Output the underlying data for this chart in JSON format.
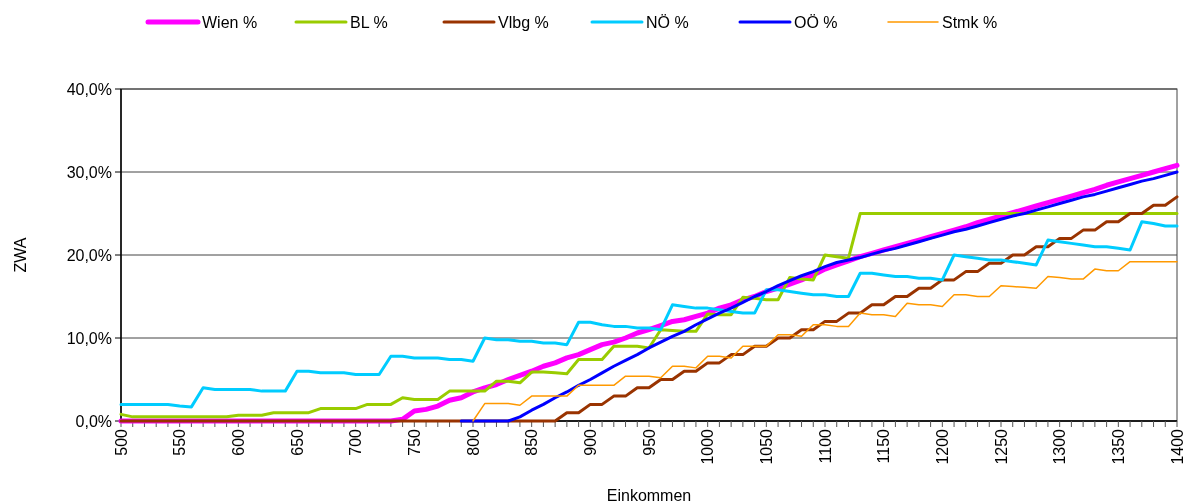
{
  "chart_data": {
    "type": "line",
    "xlabel": "Einkommen",
    "ylabel": "ZWA",
    "legend": "top",
    "grid": "y",
    "marker": "none",
    "line_style": "solid",
    "x": [
      500,
      510,
      520,
      530,
      540,
      550,
      560,
      570,
      580,
      590,
      600,
      610,
      620,
      630,
      640,
      650,
      660,
      670,
      680,
      690,
      700,
      710,
      720,
      730,
      740,
      750,
      760,
      770,
      780,
      790,
      800,
      810,
      820,
      830,
      840,
      850,
      860,
      870,
      880,
      890,
      900,
      910,
      920,
      930,
      940,
      950,
      960,
      970,
      980,
      990,
      1000,
      1010,
      1020,
      1030,
      1040,
      1050,
      1060,
      1070,
      1080,
      1090,
      1100,
      1110,
      1120,
      1130,
      1140,
      1150,
      1160,
      1170,
      1180,
      1190,
      1200,
      1210,
      1220,
      1230,
      1240,
      1250,
      1260,
      1270,
      1280,
      1290,
      1300,
      1310,
      1320,
      1330,
      1340,
      1350,
      1360,
      1370,
      1380,
      1390,
      1400
    ],
    "xlim": [
      500,
      1400
    ],
    "xticks": [
      500,
      {
        "value": 510,
        "label": null
      },
      {
        "value": 520,
        "label": null
      },
      {
        "value": 530,
        "label": null
      },
      {
        "value": 540,
        "label": null
      },
      550,
      {
        "value": 560,
        "label": null
      },
      {
        "value": 570,
        "label": null
      },
      {
        "value": 580,
        "label": null
      },
      {
        "value": 590,
        "label": null
      },
      600,
      {
        "value": 610,
        "label": null
      },
      {
        "value": 620,
        "label": null
      },
      {
        "value": 630,
        "label": null
      },
      {
        "value": 640,
        "label": null
      },
      650,
      {
        "value": 660,
        "label": null
      },
      {
        "value": 670,
        "label": null
      },
      {
        "value": 680,
        "label": null
      },
      {
        "value": 690,
        "label": null
      },
      700,
      {
        "value": 710,
        "label": null
      },
      {
        "value": 720,
        "label": null
      },
      {
        "value": 730,
        "label": null
      },
      {
        "value": 740,
        "label": null
      },
      750,
      {
        "value": 760,
        "label": null
      },
      {
        "value": 770,
        "label": null
      },
      {
        "value": 780,
        "label": null
      },
      {
        "value": 790,
        "label": null
      },
      800,
      {
        "value": 810,
        "label": null
      },
      {
        "value": 820,
        "label": null
      },
      {
        "value": 830,
        "label": null
      },
      {
        "value": 840,
        "label": null
      },
      850,
      {
        "value": 860,
        "label": null
      },
      {
        "value": 870,
        "label": null
      },
      {
        "value": 880,
        "label": null
      },
      {
        "value": 890,
        "label": null
      },
      900,
      {
        "value": 910,
        "label": null
      },
      {
        "value": 920,
        "label": null
      },
      {
        "value": 930,
        "label": null
      },
      {
        "value": 940,
        "label": null
      },
      950,
      {
        "value": 960,
        "label": null
      },
      {
        "value": 970,
        "label": null
      },
      {
        "value": 980,
        "label": null
      },
      {
        "value": 990,
        "label": null
      },
      1000,
      {
        "value": 1010,
        "label": null
      },
      {
        "value": 1020,
        "label": null
      },
      {
        "value": 1030,
        "label": null
      },
      {
        "value": 1040,
        "label": null
      },
      1050,
      {
        "value": 1060,
        "label": null
      },
      {
        "value": 1070,
        "label": null
      },
      {
        "value": 1080,
        "label": null
      },
      {
        "value": 1090,
        "label": null
      },
      1100,
      {
        "value": 1110,
        "label": null
      },
      {
        "value": 1120,
        "label": null
      },
      {
        "value": 1130,
        "label": null
      },
      {
        "value": 1140,
        "label": null
      },
      1150,
      {
        "value": 1160,
        "label": null
      },
      {
        "value": 1170,
        "label": null
      },
      {
        "value": 1180,
        "label": null
      },
      {
        "value": 1190,
        "label": null
      },
      1200,
      {
        "value": 1210,
        "label": null
      },
      {
        "value": 1220,
        "label": null
      },
      {
        "value": 1230,
        "label": null
      },
      {
        "value": 1240,
        "label": null
      },
      1250,
      {
        "value": 1260,
        "label": null
      },
      {
        "value": 1270,
        "label": null
      },
      {
        "value": 1280,
        "label": null
      },
      {
        "value": 1290,
        "label": null
      },
      1300,
      {
        "value": 1310,
        "label": null
      },
      {
        "value": 1320,
        "label": null
      },
      {
        "value": 1330,
        "label": null
      },
      {
        "value": 1340,
        "label": null
      },
      1350,
      {
        "value": 1360,
        "label": null
      },
      {
        "value": 1370,
        "label": null
      },
      {
        "value": 1380,
        "label": null
      },
      {
        "value": 1390,
        "label": null
      },
      1400
    ],
    "ylim": [
      0,
      40
    ],
    "yticks": [
      {
        "value": 0,
        "label": "0,0%"
      },
      {
        "value": 10,
        "label": "10,0%"
      },
      {
        "value": 20,
        "label": "20,0%"
      },
      {
        "value": 30,
        "label": "30,0%"
      },
      {
        "value": 40,
        "label": "40,0%"
      }
    ],
    "series": [
      {
        "name": "Wien %",
        "color": "#ff00ff",
        "values": [
          0,
          0,
          0,
          0,
          0,
          0,
          0,
          0,
          0,
          0,
          0,
          0,
          0,
          0,
          0,
          0,
          0,
          0,
          0,
          0,
          0,
          0,
          0,
          0,
          0.2,
          1.2,
          1.4,
          1.8,
          2.5,
          2.8,
          3.5,
          4.0,
          4.4,
          5.0,
          5.5,
          6.0,
          6.6,
          7.0,
          7.6,
          8.0,
          8.6,
          9.2,
          9.5,
          10.0,
          10.6,
          11.0,
          11.5,
          12.0,
          12.2,
          12.6,
          13.0,
          13.6,
          14.0,
          14.6,
          15.0,
          15.6,
          16.0,
          16.5,
          17.0,
          17.6,
          18.3,
          18.8,
          19.3,
          19.8,
          20.2,
          20.6,
          21.0,
          21.4,
          21.8,
          22.2,
          22.6,
          23.0,
          23.4,
          23.9,
          24.3,
          24.7,
          25.1,
          25.5,
          25.9,
          26.3,
          26.7,
          27.1,
          27.5,
          27.9,
          28.4,
          28.8,
          29.2,
          29.6,
          30.0,
          30.4,
          30.8
        ]
      },
      {
        "name": "BL %",
        "color": "#99cc00",
        "values": [
          0.8,
          0.5,
          0.5,
          0.5,
          0.5,
          0.5,
          0.5,
          0.5,
          0.5,
          0.5,
          0.7,
          0.7,
          0.7,
          1.0,
          1.0,
          1.0,
          1.0,
          1.5,
          1.5,
          1.5,
          1.5,
          2.0,
          2.0,
          2.0,
          2.8,
          2.6,
          2.6,
          2.6,
          3.6,
          3.6,
          3.6,
          3.6,
          4.8,
          4.8,
          4.6,
          5.9,
          5.9,
          5.8,
          5.7,
          7.4,
          7.4,
          7.4,
          9.0,
          9.0,
          9.0,
          8.8,
          11.0,
          10.9,
          10.8,
          10.8,
          12.9,
          12.8,
          12.8,
          14.9,
          14.8,
          14.6,
          14.6,
          17.3,
          17.1,
          17.0,
          20.0,
          19.8,
          19.6,
          25,
          25,
          25,
          25,
          25,
          25,
          25,
          25,
          25,
          25,
          25,
          25,
          25,
          25,
          25,
          25,
          25,
          25,
          25,
          25,
          25,
          25,
          25,
          25,
          25,
          25,
          25,
          25
        ]
      },
      {
        "name": "Vlbg %",
        "color": "#993300",
        "values": [
          0,
          0,
          0,
          0,
          0,
          0,
          0,
          0,
          0,
          0,
          0,
          0,
          0,
          0,
          0,
          0,
          0,
          0,
          0,
          0,
          0,
          0,
          0,
          0,
          0,
          0,
          0,
          0,
          0,
          0,
          0,
          0,
          0,
          0,
          0,
          0,
          0,
          0,
          1,
          1,
          2,
          2,
          3,
          3,
          4,
          4,
          5,
          5,
          6,
          6,
          7,
          7,
          8,
          8,
          9,
          9,
          10,
          10,
          11,
          11,
          12,
          12,
          13,
          13,
          14,
          14,
          15,
          15,
          16,
          16,
          17,
          17,
          18,
          18,
          19,
          19,
          20,
          20,
          21,
          21,
          22,
          22,
          23,
          23,
          24,
          24,
          25,
          25,
          26,
          26,
          27
        ]
      },
      {
        "name": "NÖ %",
        "color": "#00ccff",
        "values": [
          2.0,
          2.0,
          2.0,
          2.0,
          2.0,
          1.8,
          1.7,
          4.0,
          3.8,
          3.8,
          3.8,
          3.8,
          3.6,
          3.6,
          3.6,
          6.0,
          6.0,
          5.8,
          5.8,
          5.8,
          5.6,
          5.6,
          5.6,
          7.8,
          7.8,
          7.6,
          7.6,
          7.6,
          7.4,
          7.4,
          7.2,
          10.0,
          9.8,
          9.8,
          9.6,
          9.6,
          9.4,
          9.4,
          9.2,
          11.9,
          11.9,
          11.6,
          11.4,
          11.4,
          11.2,
          11.2,
          11.0,
          14.0,
          13.8,
          13.6,
          13.6,
          13.4,
          13.2,
          13.0,
          13.0,
          15.8,
          15.8,
          15.6,
          15.4,
          15.2,
          15.2,
          15.0,
          15.0,
          17.8,
          17.8,
          17.6,
          17.4,
          17.4,
          17.2,
          17.2,
          17.0,
          20.0,
          19.8,
          19.6,
          19.4,
          19.4,
          19.2,
          19.0,
          18.8,
          21.8,
          21.6,
          21.4,
          21.2,
          21.0,
          21.0,
          20.8,
          20.6,
          24.0,
          23.8,
          23.5,
          23.5
        ]
      },
      {
        "name": "OÖ %",
        "color": "#0000ff",
        "values": [
          null,
          null,
          null,
          null,
          null,
          null,
          null,
          null,
          null,
          null,
          null,
          null,
          null,
          null,
          null,
          null,
          null,
          null,
          null,
          null,
          null,
          null,
          null,
          null,
          null,
          null,
          null,
          null,
          null,
          0,
          0,
          0,
          0,
          0,
          0.5,
          1.3,
          2.0,
          2.8,
          3.5,
          4.3,
          5.0,
          5.8,
          6.6,
          7.3,
          8.0,
          8.8,
          9.5,
          10.2,
          10.8,
          11.6,
          12.3,
          13.0,
          13.6,
          14.3,
          15.0,
          15.6,
          16.3,
          16.9,
          17.5,
          18.0,
          18.6,
          19.1,
          19.4,
          19.7,
          20.1,
          20.5,
          20.8,
          21.2,
          21.6,
          22.0,
          22.4,
          22.8,
          23.1,
          23.5,
          23.9,
          24.3,
          24.7,
          25.0,
          25.4,
          25.8,
          26.2,
          26.6,
          27.0,
          27.3,
          27.7,
          28.1,
          28.5,
          28.9,
          29.2,
          29.6,
          30.0
        ]
      },
      {
        "name": "Stmk %",
        "color": "#ff9900",
        "values": [
          null,
          null,
          null,
          null,
          null,
          null,
          null,
          null,
          null,
          null,
          null,
          null,
          null,
          null,
          null,
          null,
          null,
          null,
          null,
          null,
          null,
          null,
          null,
          null,
          null,
          null,
          null,
          null,
          null,
          null,
          0,
          2.1,
          2.1,
          2.1,
          1.9,
          3.0,
          3.0,
          3.0,
          3.0,
          4.3,
          4.3,
          4.3,
          4.3,
          5.4,
          5.4,
          5.4,
          5.2,
          6.6,
          6.6,
          6.4,
          7.8,
          7.8,
          7.6,
          9.0,
          9.0,
          9.0,
          10.4,
          10.4,
          10.2,
          11.6,
          11.6,
          11.4,
          11.4,
          13.0,
          12.8,
          12.8,
          12.6,
          14.2,
          14.0,
          14.0,
          13.8,
          15.2,
          15.2,
          15.0,
          15.0,
          16.3,
          16.2,
          16.1,
          16.0,
          17.4,
          17.3,
          17.1,
          17.1,
          18.3,
          18.1,
          18.1,
          19.2,
          19.2,
          19.2,
          19.2,
          19.2
        ]
      }
    ]
  }
}
